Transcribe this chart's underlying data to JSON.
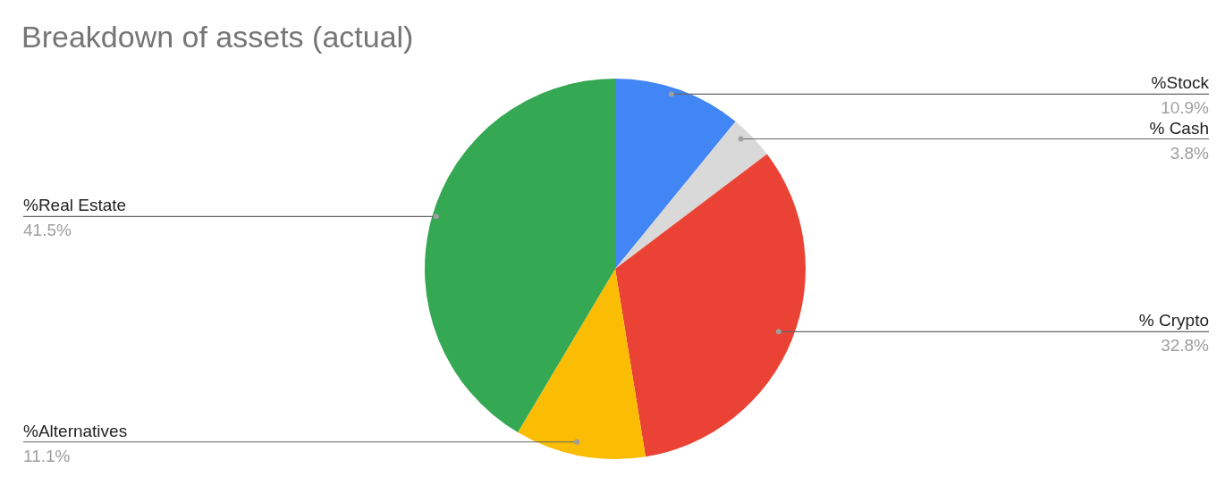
{
  "chart_data": {
    "type": "pie",
    "title": "Breakdown of assets (actual)",
    "categories": [
      "%Stock",
      "% Cash",
      "% Crypto",
      "%Alternatives",
      "%Real Estate"
    ],
    "values": [
      10.9,
      3.8,
      32.8,
      11.1,
      41.5
    ],
    "colors": [
      "#4285f4",
      "#d9d9d9",
      "#ea4335",
      "#fbbc04",
      "#34a853"
    ],
    "value_labels": [
      "10.9%",
      "3.8%",
      "32.8%",
      "11.1%",
      "41.5%"
    ]
  }
}
